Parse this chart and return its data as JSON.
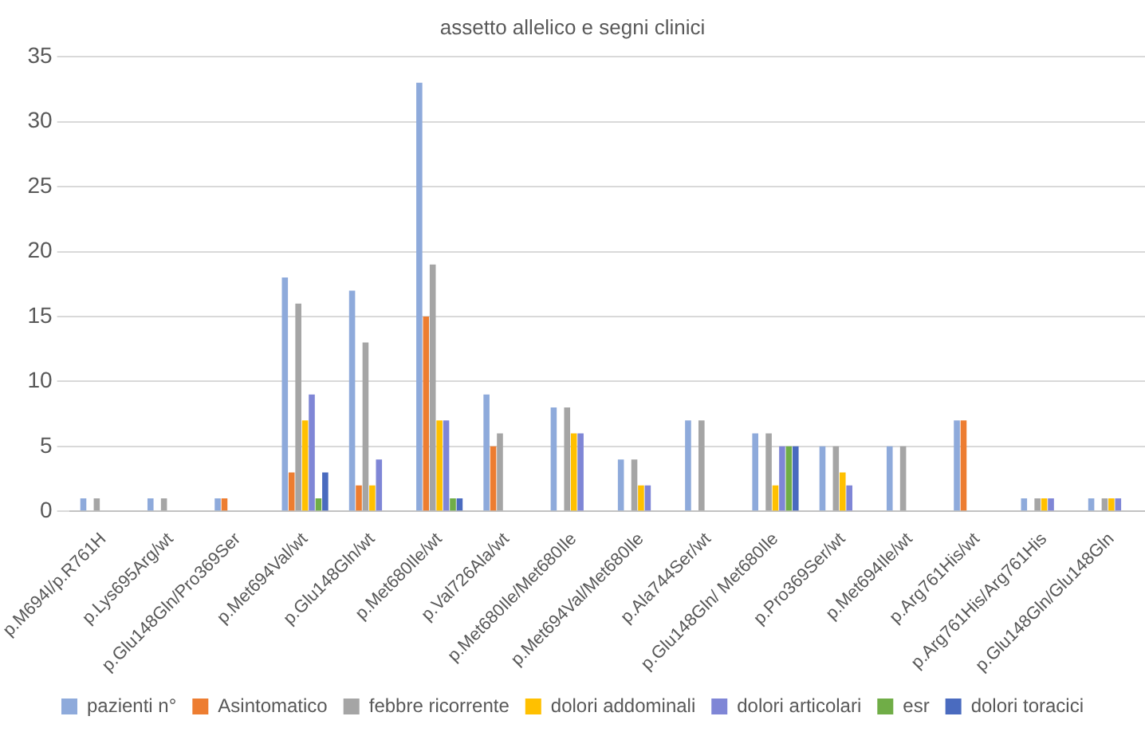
{
  "chart_data": {
    "type": "bar",
    "title": "assetto allelico e segni clinici",
    "categories": [
      "p.M694I/p.R761H",
      "p.Lys695Arg/wt",
      "p.Glu148Gln/Pro369Ser",
      "p.Met694Val/wt",
      "p.Glu148Gln/wt",
      "p.Met680Ile/wt",
      "p.Val726Ala/wt",
      "p.Met680Ile/Met680Ile",
      "p.Met694Val/Met680Ile",
      "p.Ala744Ser/wt",
      "p.Glu148Gln/ Met680Ile",
      "p.Pro369Ser/wt",
      "p.Met694Ile/wt",
      "p.Arg761His/wt",
      "p.Arg761His/Arg761His",
      "p.Glu148Gln/Glu148Gln"
    ],
    "series": [
      {
        "name": "pazienti n°",
        "color": "#8eaadb",
        "values": [
          1,
          1,
          1,
          18,
          17,
          33,
          9,
          8,
          4,
          7,
          6,
          5,
          5,
          7,
          1,
          1
        ]
      },
      {
        "name": "Asintomatico",
        "color": "#ed7d31",
        "values": [
          0,
          0,
          1,
          3,
          2,
          15,
          5,
          0,
          0,
          0,
          0,
          0,
          0,
          7,
          0,
          0
        ]
      },
      {
        "name": "febbre ricorrente",
        "color": "#a5a5a5",
        "values": [
          1,
          1,
          0,
          16,
          13,
          19,
          6,
          8,
          4,
          7,
          6,
          5,
          5,
          0,
          1,
          1
        ]
      },
      {
        "name": "dolori addominali",
        "color": "#ffc000",
        "values": [
          0,
          0,
          0,
          7,
          2,
          7,
          0,
          6,
          2,
          0,
          2,
          3,
          0,
          0,
          1,
          1
        ]
      },
      {
        "name": "dolori articolari",
        "color": "#7f86d6",
        "values": [
          0,
          0,
          0,
          9,
          4,
          7,
          0,
          6,
          2,
          0,
          5,
          2,
          0,
          0,
          1,
          1
        ]
      },
      {
        "name": "esr",
        "color": "#70ad47",
        "values": [
          0,
          0,
          0,
          1,
          0,
          1,
          0,
          0,
          0,
          0,
          5,
          0,
          0,
          0,
          0,
          0
        ]
      },
      {
        "name": "dolori toracici",
        "color": "#4a6bbf",
        "values": [
          0,
          0,
          0,
          3,
          0,
          1,
          0,
          0,
          0,
          0,
          5,
          0,
          0,
          0,
          0,
          0
        ]
      }
    ],
    "ylim": [
      0,
      35
    ],
    "yticks": [
      0,
      5,
      10,
      15,
      20,
      25,
      30,
      35
    ],
    "grid": "y",
    "legend": "bottom"
  }
}
